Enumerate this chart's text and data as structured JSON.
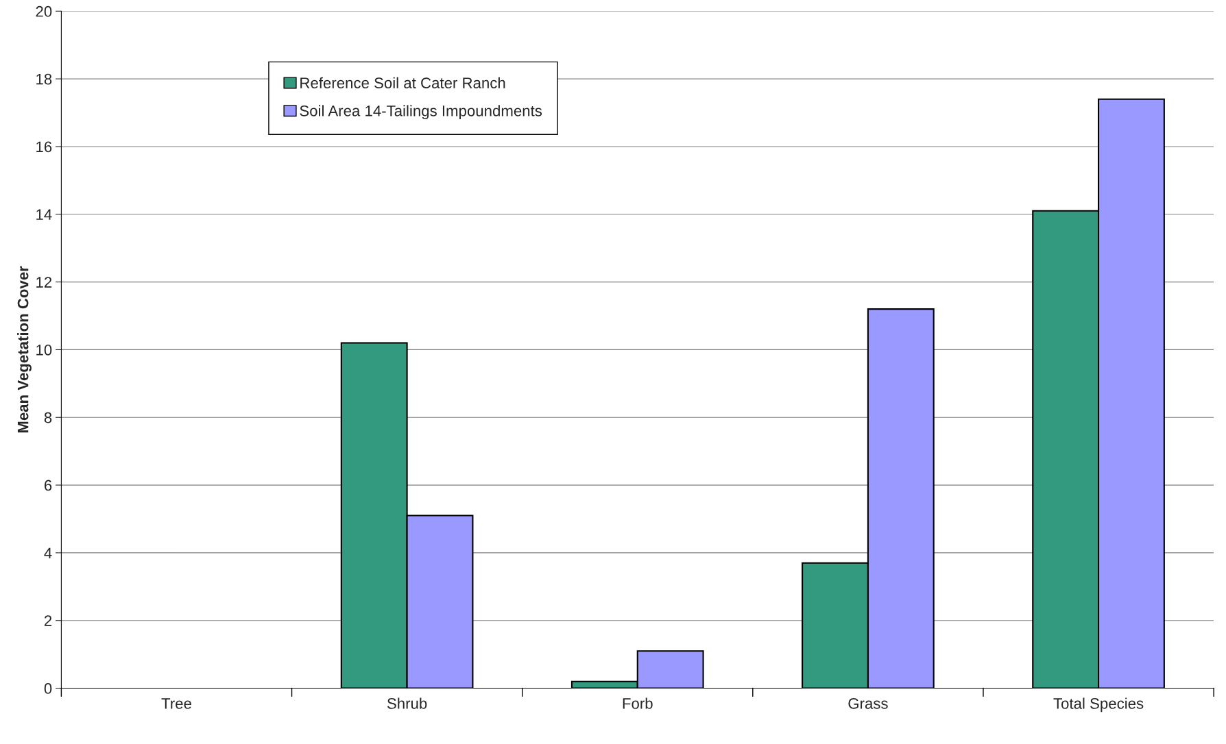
{
  "chart_data": {
    "type": "bar",
    "ylabel": "Mean Vegetation Cover",
    "categories": [
      "Tree",
      "Shrub",
      "Forb",
      "Grass",
      "Total Species"
    ],
    "series": [
      {
        "name": "Reference Soil at Cater Ranch",
        "color": "#33997f",
        "values": [
          0,
          10.2,
          0.2,
          3.7,
          14.1
        ]
      },
      {
        "name": "Soil Area 14-Tailings Impoundments",
        "color": "#9999ff",
        "values": [
          0,
          5.1,
          1.1,
          11.2,
          17.4
        ]
      }
    ],
    "ylim": [
      0,
      20
    ],
    "yticks": [
      0,
      2,
      4,
      6,
      8,
      10,
      12,
      14,
      16,
      18,
      20
    ],
    "grid": "y",
    "legend": "top left"
  }
}
